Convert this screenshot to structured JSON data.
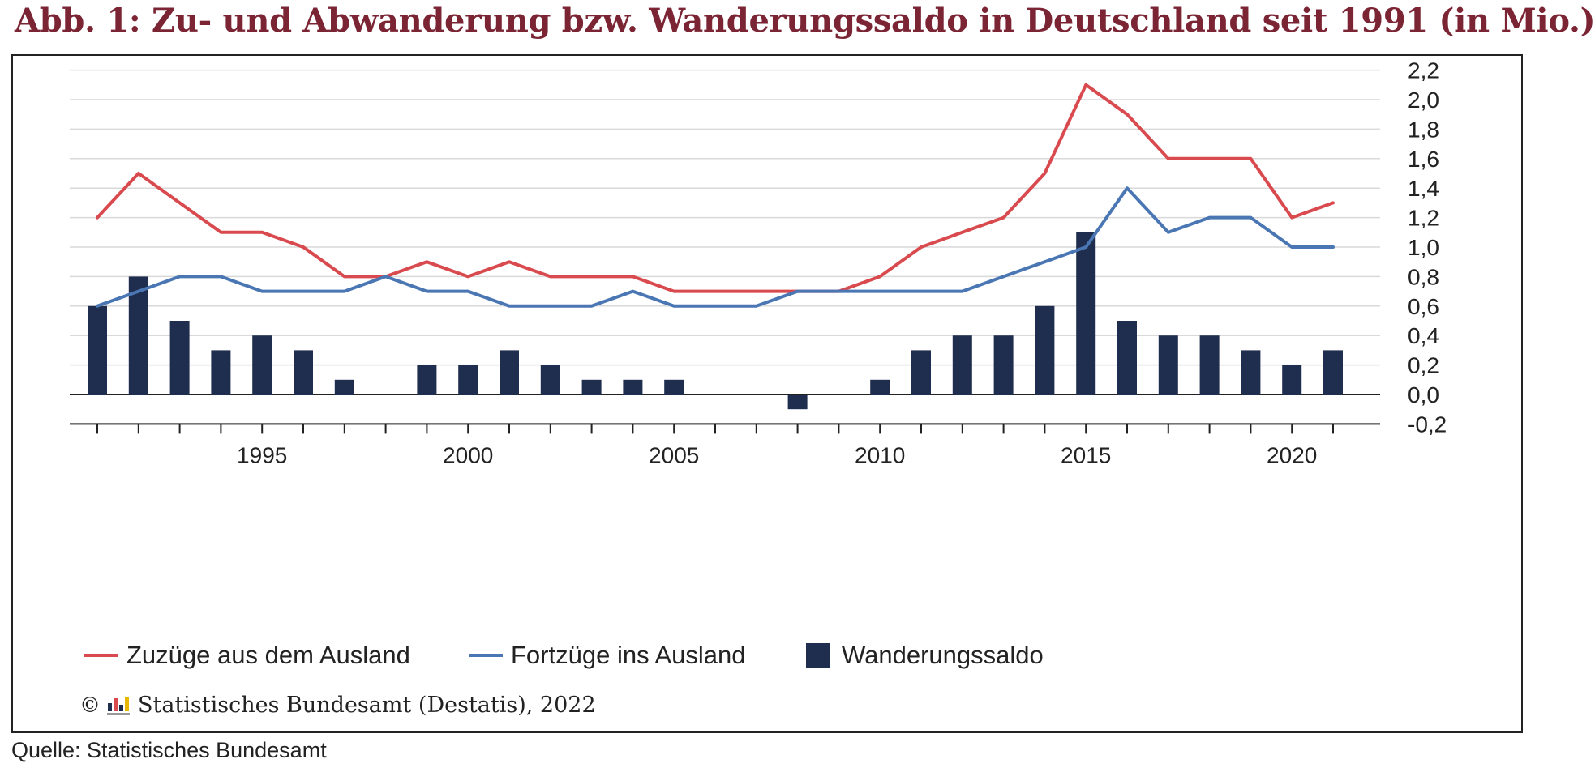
{
  "title": "Abb. 1: Zu- und Abwanderung bzw. Wanderungssaldo in Deutschland seit 1991 (in Mio.)",
  "copyright": "Statistisches Bundesamt (Destatis), 2022",
  "copyright_symbol": "©",
  "source": "Quelle: Statistisches Bundesamt",
  "colors": {
    "title": "#7a2434",
    "zuzuege": "#d94a4f",
    "fortzuege": "#4a77b4",
    "saldo": "#1f2d4e",
    "grid": "#d9d9d9"
  },
  "chart_data": {
    "type": "bar",
    "title": "",
    "years": [
      1991,
      1992,
      1993,
      1994,
      1995,
      1996,
      1997,
      1998,
      1999,
      2000,
      2001,
      2002,
      2003,
      2004,
      2005,
      2006,
      2007,
      2008,
      2009,
      2010,
      2011,
      2012,
      2013,
      2014,
      2015,
      2016,
      2017,
      2018,
      2019,
      2020,
      2021
    ],
    "x_tick_labels": [
      "1995",
      "2000",
      "2005",
      "2010",
      "2015",
      "2020"
    ],
    "y_tick_labels": [
      "2,2",
      "2,0",
      "1,8",
      "1,6",
      "1,4",
      "1,2",
      "1,0",
      "0,8",
      "0,6",
      "0,4",
      "0,2",
      "0,0",
      "-0,2"
    ],
    "ylim": [
      -0.2,
      2.2
    ],
    "y_axis_position": "right",
    "grid": true,
    "legend_position": "bottom",
    "series": [
      {
        "name": "Zuzüge aus dem Ausland",
        "kind": "line",
        "values": [
          1.2,
          1.5,
          1.3,
          1.1,
          1.1,
          1.0,
          0.8,
          0.8,
          0.9,
          0.8,
          0.9,
          0.8,
          0.8,
          0.8,
          0.7,
          0.7,
          0.7,
          0.7,
          0.7,
          0.8,
          1.0,
          1.1,
          1.2,
          1.5,
          2.1,
          1.9,
          1.6,
          1.6,
          1.6,
          1.2,
          1.3
        ]
      },
      {
        "name": "Fortzüge ins Ausland",
        "kind": "line",
        "values": [
          0.6,
          0.7,
          0.8,
          0.8,
          0.7,
          0.7,
          0.7,
          0.8,
          0.7,
          0.7,
          0.6,
          0.6,
          0.6,
          0.7,
          0.6,
          0.6,
          0.6,
          0.7,
          0.7,
          0.7,
          0.7,
          0.7,
          0.8,
          0.9,
          1.0,
          1.4,
          1.1,
          1.2,
          1.2,
          1.0,
          1.0
        ]
      },
      {
        "name": "Wanderungssaldo",
        "kind": "bar",
        "values": [
          0.6,
          0.8,
          0.5,
          0.3,
          0.4,
          0.3,
          0.1,
          null,
          0.2,
          0.2,
          0.3,
          0.2,
          0.1,
          0.1,
          0.1,
          null,
          null,
          -0.1,
          null,
          0.1,
          0.3,
          0.4,
          0.4,
          0.6,
          1.1,
          0.5,
          0.4,
          0.4,
          0.3,
          0.2,
          0.3
        ]
      }
    ]
  }
}
